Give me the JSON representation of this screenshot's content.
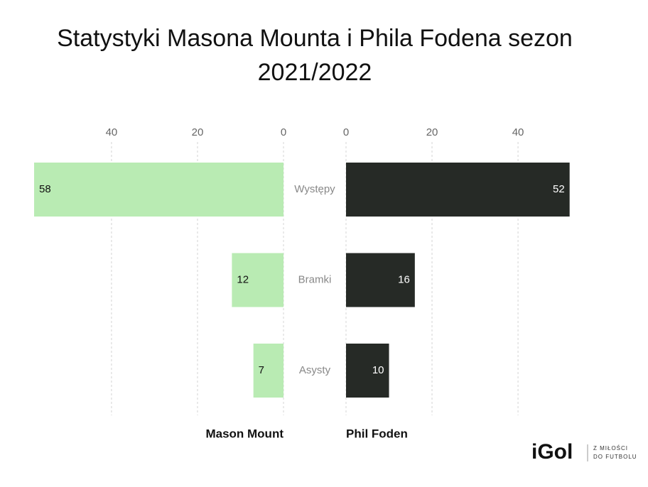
{
  "chart_data": {
    "type": "butterfly",
    "title": "Statystyki Masona Mounta i Phila Fodena sezon 2021/2022",
    "categories": [
      "Występy",
      "Bramki",
      "Asysty"
    ],
    "series": [
      {
        "name": "Mason Mount",
        "color": "#b9ebb3",
        "values": [
          58,
          12,
          7
        ],
        "xlim": [
          0,
          58
        ],
        "xticks": [
          0,
          20,
          40
        ]
      },
      {
        "name": "Phil Foden",
        "color": "#262a26",
        "values": [
          52,
          16,
          10
        ],
        "xlim": [
          0,
          58
        ],
        "xticks": [
          0,
          20,
          40
        ]
      }
    ],
    "grid": true
  },
  "logo": {
    "brand": "iGol",
    "tagline_1": "Z MIŁOŚCI",
    "tagline_2": "DO FUTBOLU"
  }
}
